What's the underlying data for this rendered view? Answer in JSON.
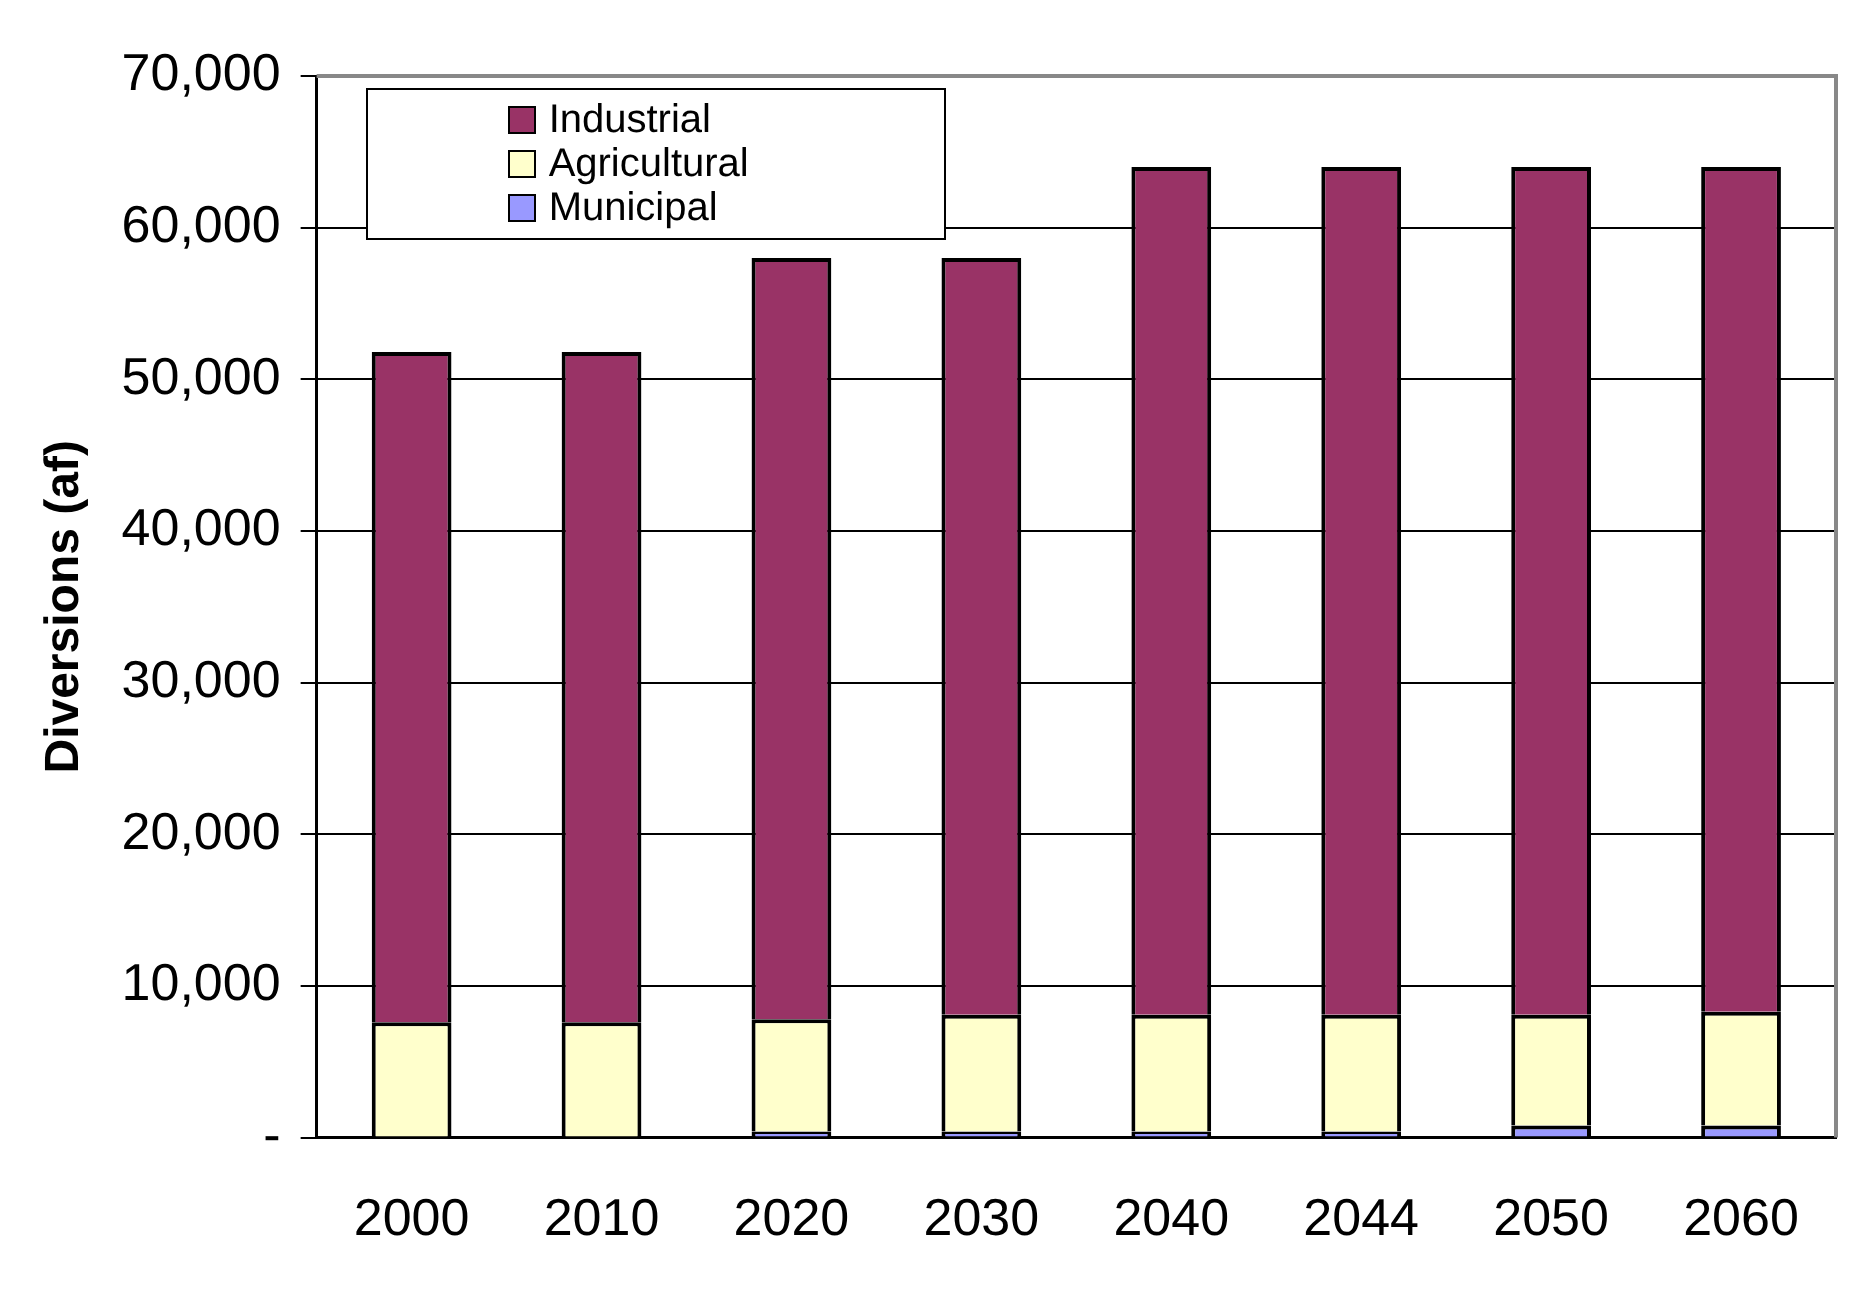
{
  "chart_data": {
    "type": "bar",
    "stacked": true,
    "ylabel": "Diversions (af)",
    "categories": [
      "2000",
      "2010",
      "2020",
      "2030",
      "2040",
      "2044",
      "2050",
      "2060"
    ],
    "series": [
      {
        "name": "Municipal",
        "color": "#9999ff",
        "values": [
          null,
          null,
          400,
          400,
          400,
          400,
          800,
          800
        ]
      },
      {
        "name": "Agricultural",
        "color": "#ffffcc",
        "values": [
          7600,
          7600,
          7400,
          7700,
          7700,
          7700,
          7300,
          7500
        ]
      },
      {
        "name": "Industrial",
        "color": "#993366",
        "values": [
          44200,
          44200,
          50200,
          49900,
          55900,
          55900,
          55900,
          55700
        ]
      }
    ],
    "ylim": [
      0,
      70000
    ],
    "yticks": [
      {
        "value": 0,
        "label": "-"
      },
      {
        "value": 10000,
        "label": "10,000"
      },
      {
        "value": 20000,
        "label": "20,000"
      },
      {
        "value": 30000,
        "label": "30,000"
      },
      {
        "value": 40000,
        "label": "40,000"
      },
      {
        "value": 50000,
        "label": "50,000"
      },
      {
        "value": 60000,
        "label": "60,000"
      },
      {
        "value": 70000,
        "label": "70,000"
      }
    ],
    "grid": "y",
    "legend": "top left"
  }
}
